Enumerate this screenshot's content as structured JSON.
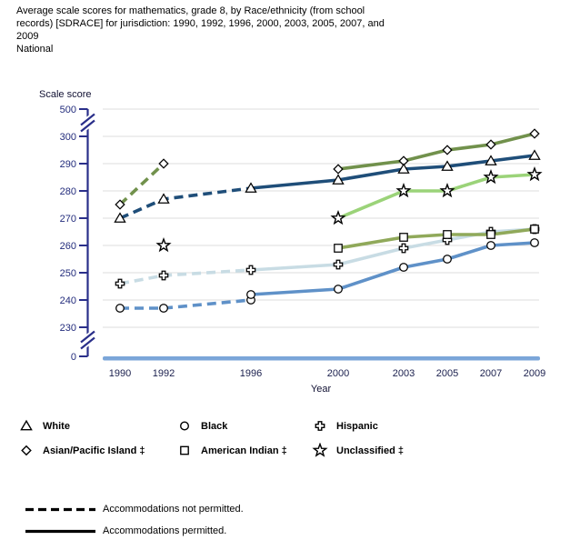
{
  "header": {
    "title_lines": [
      "Average scale scores for mathematics, grade 8, by Race/ethnicity (from school",
      "records) [SDRACE] for jurisdiction: 1990, 1992, 1996, 2000, 2003, 2005, 2007, and",
      "2009"
    ],
    "subtitle": "National"
  },
  "chart_data": {
    "type": "line",
    "title": "Average scale scores for mathematics, grade 8, by Race/ethnicity (from school records) [SDRACE] for jurisdiction: 1990, 1992, 1996, 2000, 2003, 2005, 2007, and 2009 - National",
    "xlabel": "Year",
    "ylabel": "Scale score",
    "x": [
      1990,
      1992,
      1996,
      2000,
      2003,
      2005,
      2007,
      2009
    ],
    "y_ticks": [
      500,
      300,
      290,
      280,
      270,
      260,
      250,
      240,
      230,
      0
    ],
    "y_axis_break": "axis broken between 0 and 230 and between 300 and 500",
    "grid": "horizontal",
    "legend_position": "below",
    "series": [
      {
        "name": "White",
        "marker": "triangle",
        "color": "#1F4E79",
        "segments": [
          {
            "style": "dashed",
            "points": [
              [
                1990,
                270
              ],
              [
                1992,
                277
              ],
              [
                1996,
                281
              ]
            ]
          },
          {
            "style": "solid",
            "points": [
              [
                1996,
                281
              ],
              [
                2000,
                284
              ],
              [
                2003,
                288
              ],
              [
                2005,
                289
              ],
              [
                2007,
                291
              ],
              [
                2009,
                293
              ]
            ]
          }
        ]
      },
      {
        "name": "Black",
        "marker": "circle",
        "color": "#5F91C8",
        "segments": [
          {
            "style": "dashed",
            "points": [
              [
                1990,
                237
              ],
              [
                1992,
                237
              ],
              [
                1996,
                240
              ]
            ]
          },
          {
            "style": "solid",
            "points": [
              [
                1996,
                242
              ],
              [
                2000,
                244
              ],
              [
                2003,
                252
              ],
              [
                2005,
                255
              ],
              [
                2007,
                260
              ],
              [
                2009,
                261
              ]
            ]
          }
        ]
      },
      {
        "name": "Hispanic",
        "marker": "plus",
        "color": "#C8DCE4",
        "segments": [
          {
            "style": "dashed",
            "points": [
              [
                1990,
                246
              ],
              [
                1992,
                249
              ],
              [
                1996,
                251
              ]
            ]
          },
          {
            "style": "solid",
            "points": [
              [
                1996,
                251
              ],
              [
                2000,
                253
              ],
              [
                2003,
                259
              ],
              [
                2005,
                262
              ],
              [
                2007,
                265
              ],
              [
                2009,
                266
              ]
            ]
          }
        ]
      },
      {
        "name": "Asian/Pacific Island ‡",
        "marker": "diamond",
        "color": "#71914C",
        "segments": [
          {
            "style": "dashed",
            "points": [
              [
                1990,
                275
              ],
              [
                1992,
                290
              ]
            ]
          },
          {
            "style": "solid",
            "points": [
              [
                2000,
                288
              ],
              [
                2003,
                291
              ],
              [
                2005,
                295
              ],
              [
                2007,
                297
              ],
              [
                2009,
                301
              ]
            ]
          }
        ]
      },
      {
        "name": "American Indian ‡",
        "marker": "square",
        "color": "#90A95A",
        "segments": [
          {
            "style": "solid",
            "points": [
              [
                2000,
                259
              ],
              [
                2003,
                263
              ],
              [
                2005,
                264
              ],
              [
                2007,
                264
              ],
              [
                2009,
                266
              ]
            ]
          }
        ]
      },
      {
        "name": "Unclassified ‡",
        "marker": "star",
        "color": "#9BD379",
        "segments": [
          {
            "style": "none",
            "points": [
              [
                1992,
                260
              ]
            ]
          },
          {
            "style": "solid",
            "points": [
              [
                2000,
                270
              ],
              [
                2003,
                280
              ],
              [
                2005,
                280
              ],
              [
                2007,
                285
              ],
              [
                2009,
                286
              ]
            ]
          }
        ]
      }
    ],
    "line_styles": {
      "dashed": "Accommodations not permitted.",
      "solid": "Accommodations permitted."
    }
  },
  "legend": {
    "items": [
      {
        "marker": "triangle",
        "label": "White"
      },
      {
        "marker": "circle",
        "label": "Black"
      },
      {
        "marker": "plus",
        "label": "Hispanic"
      },
      {
        "marker": "diamond",
        "label": "Asian/Pacific Island ‡"
      },
      {
        "marker": "square",
        "label": "American Indian ‡"
      },
      {
        "marker": "star",
        "label": "Unclassified ‡"
      }
    ]
  },
  "line_style_legend": [
    {
      "style": "dashed",
      "label": "Accommodations not permitted."
    },
    {
      "style": "solid",
      "label": "Accommodations permitted."
    }
  ],
  "colors": {
    "axis": "#2A2F8A",
    "gridline": "#DDDDDD",
    "zero_line": "#7BA6D9",
    "marker_fill": "#FFFFFF",
    "marker_stroke": "#000000"
  }
}
